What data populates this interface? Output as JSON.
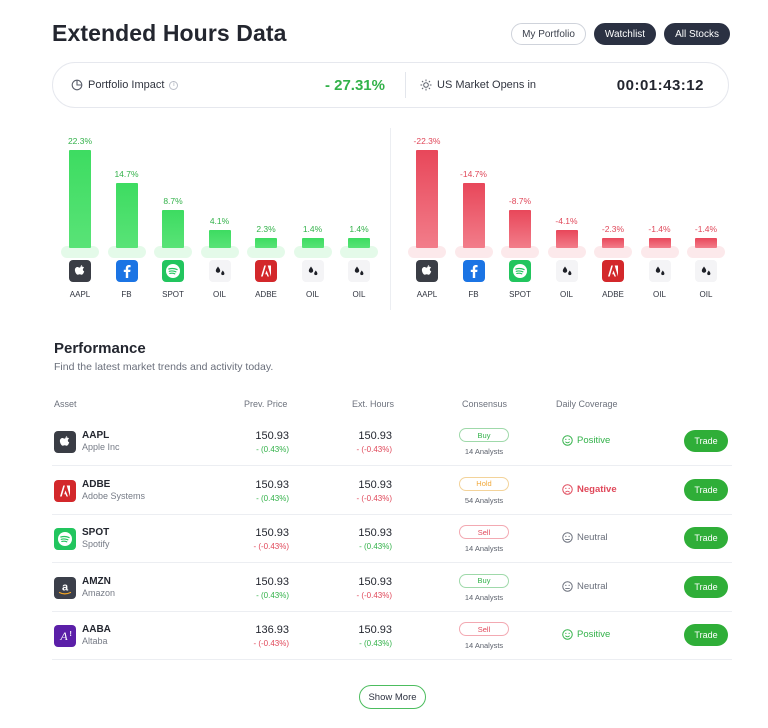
{
  "header": {
    "title": "Extended Hours Data",
    "buttons": [
      "My Portfolio",
      "Watchlist",
      "All Stocks"
    ]
  },
  "summary": {
    "impact_label": "Portfolio Impact",
    "impact_value": "- 27.31%",
    "market_label": "US Market Opens in",
    "timer": "00:01:43:12"
  },
  "gainers": [
    {
      "ticker": "AAPL",
      "label": "22.3%",
      "value": 22.3,
      "icon": "apple-icon"
    },
    {
      "ticker": "FB",
      "label": "14.7%",
      "value": 14.7,
      "icon": "facebook-icon"
    },
    {
      "ticker": "SPOT",
      "label": "8.7%",
      "value": 8.7,
      "icon": "spotify-icon"
    },
    {
      "ticker": "OIL",
      "label": "4.1%",
      "value": 4.1,
      "icon": "oil-drop-icon"
    },
    {
      "ticker": "ADBE",
      "label": "2.3%",
      "value": 2.3,
      "icon": "adobe-icon"
    },
    {
      "ticker": "OIL",
      "label": "1.4%",
      "value": 1.4,
      "icon": "oil-drop-icon"
    },
    {
      "ticker": "OIL",
      "label": "1.4%",
      "value": 1.4,
      "icon": "oil-drop-icon"
    }
  ],
  "losers": [
    {
      "ticker": "AAPL",
      "label": "-22.3%",
      "value": -22.3,
      "icon": "apple-icon"
    },
    {
      "ticker": "FB",
      "label": "-14.7%",
      "value": -14.7,
      "icon": "facebook-icon"
    },
    {
      "ticker": "SPOT",
      "label": "-8.7%",
      "value": -8.7,
      "icon": "spotify-icon"
    },
    {
      "ticker": "OIL",
      "label": "-4.1%",
      "value": -4.1,
      "icon": "oil-drop-icon"
    },
    {
      "ticker": "ADBE",
      "label": "-2.3%",
      "value": -2.3,
      "icon": "adobe-icon"
    },
    {
      "ticker": "OIL",
      "label": "-1.4%",
      "value": -1.4,
      "icon": "oil-drop-icon"
    },
    {
      "ticker": "OIL",
      "label": "-1.4%",
      "value": -1.4,
      "icon": "oil-drop-icon"
    }
  ],
  "performance": {
    "title": "Performance",
    "subtitle": "Find the latest market trends and activity today.",
    "columns": [
      "Asset",
      "Prev. Price",
      "Ext. Hours",
      "Consensus",
      "Daily Coverage"
    ],
    "rows": [
      {
        "symbol": "AAPL",
        "name": "Apple Inc",
        "icon": "apple-icon",
        "prev_price": "150.93",
        "prev_change": "- (0.43%)",
        "prev_dir": "g",
        "ext_price": "150.93",
        "ext_change": "- (-0.43%)",
        "ext_dir": "r",
        "consensus": "Buy",
        "analysts": "14 Analysts",
        "coverage": "Positive",
        "trade": "Trade"
      },
      {
        "symbol": "ADBE",
        "name": "Adobe Systems",
        "icon": "adobe-icon",
        "prev_price": "150.93",
        "prev_change": "- (0.43%)",
        "prev_dir": "g",
        "ext_price": "150.93",
        "ext_change": "- (-0.43%)",
        "ext_dir": "r",
        "consensus": "Hold",
        "analysts": "54 Analysts",
        "coverage": "Negative",
        "trade": "Trade"
      },
      {
        "symbol": "SPOT",
        "name": "Spotify",
        "icon": "spotify-icon",
        "prev_price": "150.93",
        "prev_change": "- (-0.43%)",
        "prev_dir": "r",
        "ext_price": "150.93",
        "ext_change": "- (0.43%)",
        "ext_dir": "g",
        "consensus": "Sell",
        "analysts": "14 Analysts",
        "coverage": "Neutral",
        "trade": "Trade"
      },
      {
        "symbol": "AMZN",
        "name": "Amazon",
        "icon": "amazon-icon",
        "prev_price": "150.93",
        "prev_change": "- (0.43%)",
        "prev_dir": "g",
        "ext_price": "150.93",
        "ext_change": "- (-0.43%)",
        "ext_dir": "r",
        "consensus": "Buy",
        "analysts": "14 Analysts",
        "coverage": "Neutral",
        "trade": "Trade"
      },
      {
        "symbol": "AABA",
        "name": "Altaba",
        "icon": "altaba-icon",
        "prev_price": "136.93",
        "prev_change": "- (-0.43%)",
        "prev_dir": "r",
        "ext_price": "150.93",
        "ext_change": "- (0.43%)",
        "ext_dir": "g",
        "consensus": "Sell",
        "analysts": "14 Analysts",
        "coverage": "Positive",
        "trade": "Trade"
      }
    ],
    "show_more": "Show More"
  }
}
